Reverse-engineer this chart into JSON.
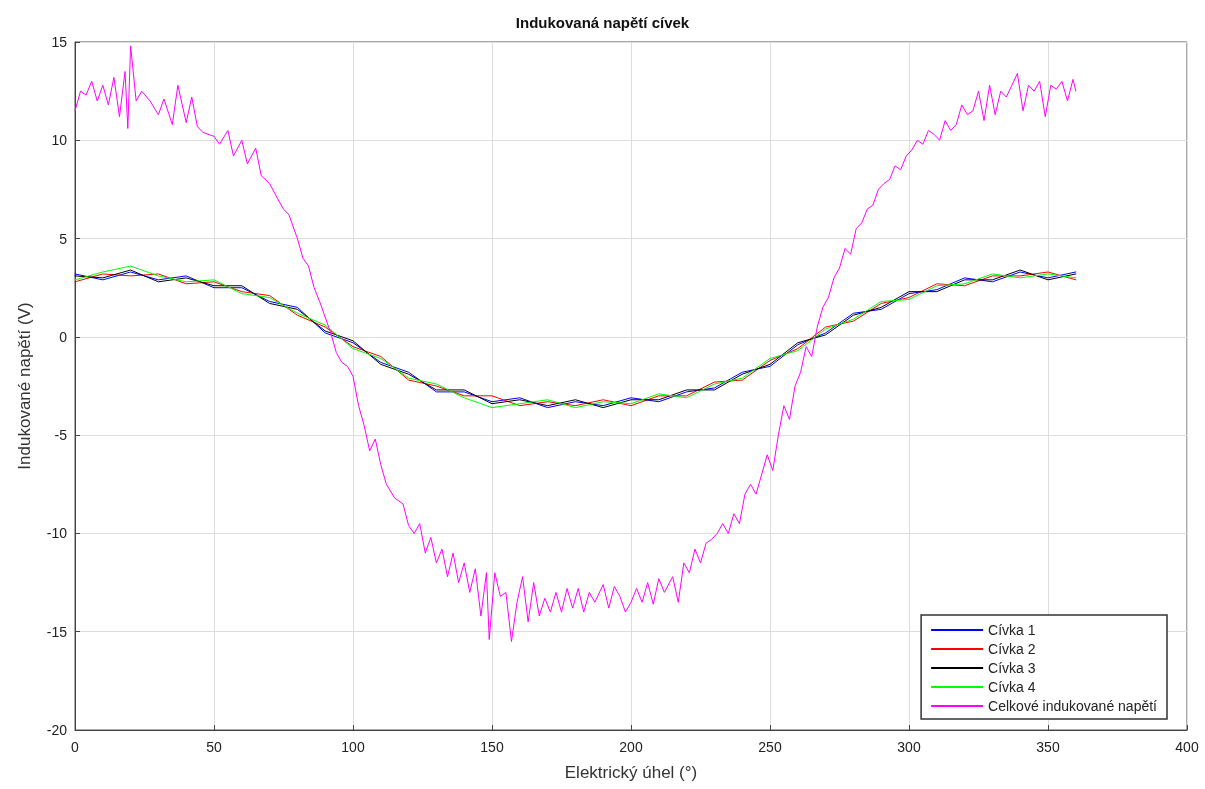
{
  "chart_data": {
    "type": "line",
    "title": "Indukovaná napětí cívek",
    "xlabel": "Elektrický úhel (°)",
    "ylabel": "Indukované napětí (V)",
    "x": [
      0,
      10,
      20,
      30,
      40,
      50,
      60,
      70,
      80,
      90,
      100,
      110,
      120,
      130,
      140,
      150,
      160,
      170,
      180,
      190,
      200,
      210,
      220,
      230,
      240,
      250,
      260,
      270,
      280,
      290,
      300,
      310,
      320,
      330,
      340,
      350,
      360
    ],
    "series": [
      {
        "name": "Cívka 1",
        "color": "#0000ff",
        "values": [
          3.2,
          2.9,
          3.3,
          2.9,
          3.1,
          2.5,
          2.5,
          1.8,
          1.5,
          0.2,
          -0.3,
          -1.3,
          -1.8,
          -2.8,
          -2.8,
          -3.3,
          -3.1,
          -3.6,
          -3.3,
          -3.5,
          -3.1,
          -3.3,
          -2.8,
          -2.6,
          -1.8,
          -1.5,
          -0.4,
          0.2,
          1.2,
          1.4,
          2.2,
          2.4,
          3.0,
          2.8,
          3.3,
          3.0,
          3.3
        ]
      },
      {
        "name": "Cívka 2",
        "color": "#ff0000",
        "values": [
          2.8,
          3.2,
          3.1,
          3.2,
          2.7,
          2.8,
          2.3,
          2.1,
          1.1,
          0.5,
          -0.5,
          -1.0,
          -2.2,
          -2.5,
          -3.0,
          -3.0,
          -3.5,
          -3.3,
          -3.5,
          -3.2,
          -3.5,
          -3.0,
          -3.0,
          -2.3,
          -2.2,
          -1.2,
          -0.6,
          0.5,
          0.8,
          1.7,
          2.0,
          2.7,
          2.6,
          3.1,
          3.1,
          3.3,
          2.9
        ]
      },
      {
        "name": "Cívka 3",
        "color": "#000000",
        "values": [
          3.1,
          3.0,
          3.4,
          2.8,
          3.0,
          2.6,
          2.6,
          1.7,
          1.4,
          0.3,
          -0.2,
          -1.4,
          -1.9,
          -2.7,
          -2.7,
          -3.4,
          -3.2,
          -3.5,
          -3.2,
          -3.6,
          -3.2,
          -3.2,
          -2.7,
          -2.7,
          -1.9,
          -1.4,
          -0.3,
          0.1,
          1.1,
          1.5,
          2.3,
          2.3,
          2.9,
          2.9,
          3.4,
          2.9,
          3.2
        ]
      },
      {
        "name": "Cívka 4",
        "color": "#00ff00",
        "values": [
          2.9,
          3.3,
          3.6,
          3.1,
          2.8,
          2.9,
          2.2,
          2.0,
          1.2,
          0.6,
          -0.6,
          -1.1,
          -2.1,
          -2.4,
          -3.1,
          -3.6,
          -3.4,
          -3.2,
          -3.6,
          -3.3,
          -3.4,
          -2.9,
          -3.1,
          -2.4,
          -2.1,
          -1.1,
          -0.7,
          0.4,
          0.9,
          1.8,
          1.9,
          2.6,
          2.7,
          3.2,
          3.0,
          3.2,
          3.0
        ]
      },
      {
        "name": "Celkové indukované napětí",
        "color": "#ff00ff",
        "x": [
          0,
          2,
          4,
          6,
          8,
          10,
          12,
          14,
          16,
          18,
          19,
          20,
          22,
          24,
          27,
          30,
          32,
          35,
          37,
          40,
          42,
          44,
          46,
          50,
          52,
          55,
          57,
          60,
          62,
          65,
          67,
          70,
          73,
          75,
          77,
          80,
          82,
          84,
          86,
          88,
          90,
          92,
          94,
          96,
          98,
          100,
          102,
          104,
          106,
          108,
          110,
          112,
          115,
          118,
          120,
          122,
          124,
          126,
          128,
          130,
          132,
          134,
          136,
          138,
          140,
          142,
          144,
          146,
          148,
          149,
          151,
          153,
          155,
          157,
          159,
          161,
          163,
          165,
          167,
          169,
          171,
          173,
          175,
          177,
          179,
          181,
          183,
          185,
          187,
          190,
          192,
          194,
          196,
          198,
          200,
          202,
          204,
          206,
          208,
          210,
          212,
          215,
          217,
          219,
          221,
          223,
          225,
          227,
          229,
          231,
          233,
          235,
          237,
          239,
          241,
          243,
          245,
          247,
          249,
          251,
          253,
          255,
          257,
          259,
          261,
          263,
          265,
          267,
          269,
          271,
          273,
          275,
          277,
          279,
          281,
          283,
          285,
          287,
          289,
          291,
          293,
          295,
          297,
          299,
          301,
          303,
          305,
          307,
          309,
          311,
          313,
          315,
          317,
          319,
          321,
          323,
          325,
          327,
          329,
          331,
          333,
          335,
          337,
          339,
          341,
          343,
          345,
          347,
          349,
          351,
          353,
          355,
          357,
          359,
          360
        ],
        "values": [
          11.5,
          12.5,
          12.3,
          13.0,
          12.0,
          12.8,
          11.8,
          13.2,
          11.2,
          13.5,
          10.6,
          14.8,
          12.0,
          12.5,
          12.0,
          11.3,
          12.1,
          10.8,
          12.8,
          10.9,
          12.2,
          10.7,
          10.4,
          10.2,
          9.8,
          10.5,
          9.2,
          10.0,
          8.8,
          9.6,
          8.2,
          7.8,
          7.0,
          6.5,
          6.2,
          5.0,
          4.0,
          3.6,
          2.5,
          1.8,
          1.0,
          0.2,
          -0.8,
          -1.3,
          -1.5,
          -2.0,
          -3.5,
          -4.5,
          -5.8,
          -5.2,
          -6.5,
          -7.5,
          -8.2,
          -8.5,
          -9.6,
          -10.0,
          -9.5,
          -11.0,
          -10.2,
          -11.5,
          -10.8,
          -12.2,
          -11.0,
          -12.5,
          -11.5,
          -13.0,
          -11.8,
          -14.2,
          -12.0,
          -15.4,
          -12.0,
          -13.2,
          -13.0,
          -15.5,
          -13.5,
          -12.2,
          -14.5,
          -12.5,
          -14.2,
          -13.3,
          -14.0,
          -13.0,
          -14.0,
          -12.8,
          -13.8,
          -12.8,
          -14.0,
          -13.0,
          -13.5,
          -12.6,
          -13.8,
          -12.7,
          -13.2,
          -14.0,
          -13.5,
          -12.8,
          -13.5,
          -12.5,
          -13.6,
          -12.3,
          -13.0,
          -12.2,
          -13.5,
          -11.5,
          -12.0,
          -10.8,
          -11.5,
          -10.5,
          -10.3,
          -10.0,
          -9.5,
          -10.0,
          -9.0,
          -9.5,
          -8.0,
          -7.5,
          -8.0,
          -7.0,
          -6.0,
          -6.8,
          -5.0,
          -3.5,
          -4.2,
          -2.5,
          -1.8,
          -0.5,
          -1.0,
          0.5,
          1.5,
          2.0,
          3.0,
          3.5,
          4.5,
          4.2,
          5.5,
          5.8,
          6.5,
          6.7,
          7.5,
          7.8,
          8.0,
          8.7,
          8.5,
          9.2,
          9.5,
          10.0,
          9.8,
          10.5,
          10.3,
          10.0,
          11.0,
          10.5,
          10.8,
          11.8,
          11.3,
          11.5,
          12.5,
          11.0,
          12.8,
          11.3,
          12.5,
          12.2,
          12.8,
          13.4,
          11.5,
          12.8,
          12.5,
          13.0,
          11.2,
          12.8,
          12.6,
          13.0,
          12.0,
          13.1,
          12.5
        ]
      }
    ],
    "xlim": [
      0,
      400
    ],
    "xticks": [
      0,
      50,
      100,
      150,
      200,
      250,
      300,
      350,
      400
    ],
    "ylim": [
      -20,
      15
    ],
    "yticks": [
      -20,
      -15,
      -10,
      -5,
      0,
      5,
      10,
      15
    ],
    "grid": true,
    "legend": "bottom right",
    "marker": "none",
    "line_style": "solid"
  }
}
